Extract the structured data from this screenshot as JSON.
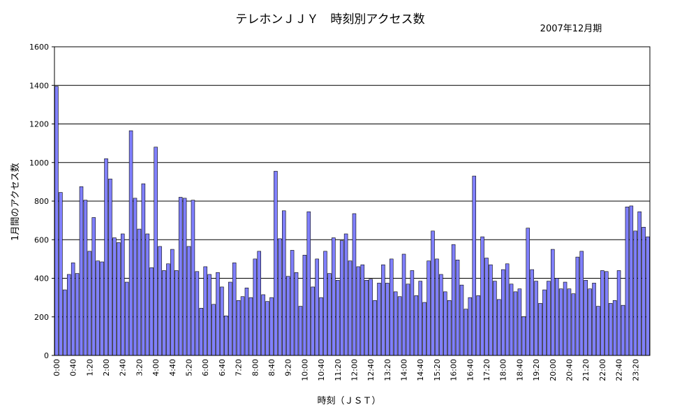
{
  "chart_data": {
    "type": "bar",
    "title": "テレホンＪＪＹ　時刻別アクセス数",
    "subtitle": "2007年12月期",
    "xlabel": "時刻（ＪＳＴ）",
    "ylabel": "1月間のアクセス数",
    "ylim": [
      0,
      1600
    ],
    "yticks": [
      "0",
      "200",
      "400",
      "600",
      "800",
      "1000",
      "1200",
      "1400",
      "1600"
    ],
    "ytick_values": [
      0,
      200,
      400,
      600,
      800,
      1000,
      1200,
      1400,
      1600
    ],
    "grid": true,
    "bar_color": "#8080ff",
    "xtick_labels": [
      "0:00",
      "0:40",
      "1:20",
      "2:00",
      "2:40",
      "3:20",
      "4:00",
      "4:40",
      "5:20",
      "6:00",
      "6:40",
      "7:20",
      "8:00",
      "8:40",
      "9:20",
      "10:00",
      "10:40",
      "11:20",
      "12:00",
      "12:40",
      "13:20",
      "14:00",
      "14:40",
      "15:20",
      "16:00",
      "16:40",
      "17:20",
      "18:00",
      "18:40",
      "19:20",
      "20:00",
      "20:40",
      "21:20",
      "22:00",
      "22:40",
      "23:20"
    ],
    "values": [
      1395,
      845,
      340,
      420,
      480,
      425,
      875,
      805,
      540,
      715,
      490,
      485,
      1020,
      915,
      610,
      585,
      630,
      380,
      1165,
      815,
      655,
      890,
      630,
      455,
      1080,
      565,
      440,
      475,
      550,
      440,
      820,
      815,
      565,
      805,
      435,
      245,
      460,
      420,
      265,
      430,
      355,
      205,
      380,
      480,
      285,
      305,
      350,
      300,
      500,
      540,
      315,
      280,
      300,
      955,
      605,
      750,
      410,
      545,
      430,
      255,
      520,
      745,
      355,
      500,
      300,
      540,
      425,
      610,
      390,
      595,
      630,
      490,
      735,
      460,
      470,
      390,
      395,
      285,
      375,
      470,
      375,
      500,
      330,
      305,
      525,
      370,
      440,
      310,
      385,
      275,
      490,
      645,
      500,
      420,
      330,
      285,
      575,
      495,
      365,
      240,
      300,
      930,
      310,
      615,
      505,
      470,
      385,
      290,
      445,
      475,
      370,
      330,
      345,
      200,
      660,
      445,
      385,
      270,
      340,
      385,
      550,
      400,
      345,
      380,
      345,
      320,
      510,
      540,
      390,
      345,
      375,
      255,
      440,
      435,
      270,
      285,
      440,
      260,
      770,
      775,
      645,
      745,
      665,
      615
    ]
  }
}
